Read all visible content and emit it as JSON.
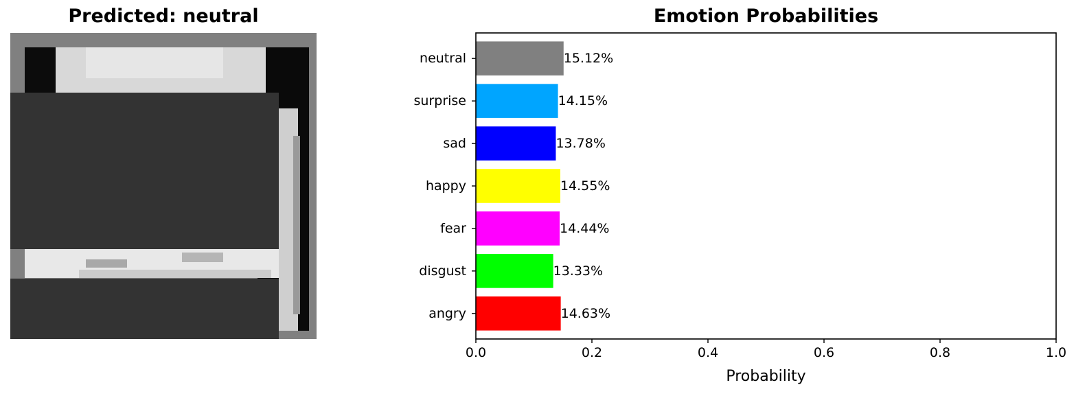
{
  "image_panel": {
    "title": "Predicted: neutral"
  },
  "chart_data": {
    "type": "bar",
    "orientation": "horizontal",
    "title": "Emotion Probabilities",
    "xlabel": "Probability",
    "ylabel": "",
    "xlim": [
      0,
      1
    ],
    "xticks": [
      "0.0",
      "0.2",
      "0.4",
      "0.6",
      "0.8",
      "1.0"
    ],
    "categories": [
      "angry",
      "disgust",
      "fear",
      "happy",
      "sad",
      "surprise",
      "neutral"
    ],
    "values": [
      0.1463,
      0.1333,
      0.1444,
      0.1455,
      0.1378,
      0.1415,
      0.1512
    ],
    "labels": [
      "14.63%",
      "13.33%",
      "14.44%",
      "14.55%",
      "13.78%",
      "14.15%",
      "15.12%"
    ],
    "colors": [
      "#ff0000",
      "#00ff00",
      "#ff00ff",
      "#ffff00",
      "#0000ff",
      "#00a5ff",
      "#808080"
    ],
    "grid": false,
    "legend": "none"
  }
}
